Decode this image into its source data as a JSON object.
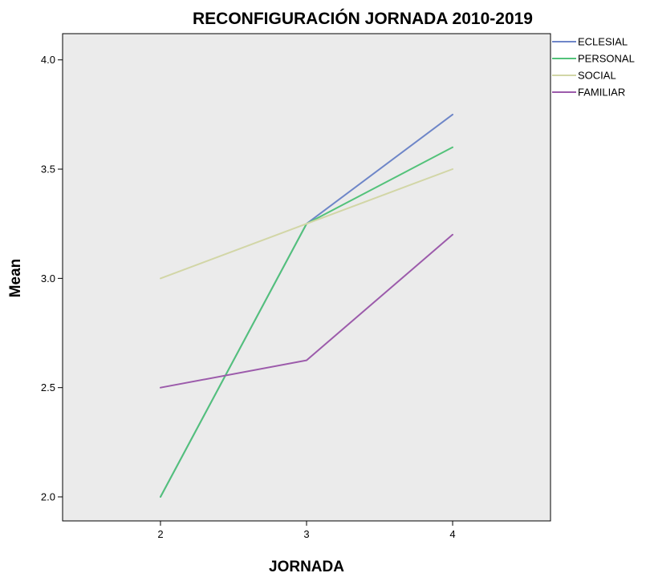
{
  "chart_data": {
    "type": "line",
    "title": "RECONFIGURACIÓN JORNADA 2010-2019",
    "xlabel": "JORNADA",
    "ylabel": "Mean",
    "x": [
      2,
      3,
      4
    ],
    "x_tick_labels": [
      "2",
      "3",
      "4"
    ],
    "xlim": [
      1.33,
      4.67
    ],
    "ylim": [
      1.89,
      4.12
    ],
    "y_ticks": [
      2.0,
      2.5,
      3.0,
      3.5,
      4.0
    ],
    "y_tick_labels": [
      "2.0",
      "2.5",
      "3.0",
      "3.5",
      "4.0"
    ],
    "grid": false,
    "legend_position": "outside-top-right",
    "plot_background": "#ebebeb",
    "series": [
      {
        "name": "ECLESIAL",
        "color": "#6e86c8",
        "values": [
          2.0,
          3.25,
          3.75
        ]
      },
      {
        "name": "PERSONAL",
        "color": "#53c27a",
        "values": [
          2.0,
          3.25,
          3.6
        ]
      },
      {
        "name": "SOCIAL",
        "color": "#d2d6a6",
        "values": [
          3.0,
          3.25,
          3.5
        ]
      },
      {
        "name": "FAMILIAR",
        "color": "#9c5bab",
        "values": [
          2.5,
          2.625,
          3.2
        ]
      }
    ]
  }
}
